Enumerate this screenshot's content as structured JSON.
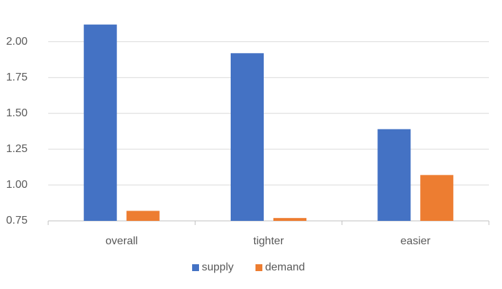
{
  "chart_data": {
    "type": "bar",
    "categories": [
      "overall",
      "tighter",
      "easier"
    ],
    "series": [
      {
        "name": "supply",
        "color": "#4472c4",
        "values": [
          2.12,
          1.92,
          1.39
        ]
      },
      {
        "name": "demand",
        "color": "#ed7d31",
        "values": [
          0.82,
          0.77,
          1.07
        ]
      }
    ],
    "ylim": [
      0.75,
      2.2
    ],
    "yticks": [
      0.75,
      {
        "value": 1,
        "label": "1.00"
      },
      1.25,
      {
        "value": 1.5,
        "label": "1.50"
      },
      1.75,
      {
        "value": 2,
        "label": "2.00"
      }
    ],
    "grid": true,
    "legend": "bottom"
  }
}
